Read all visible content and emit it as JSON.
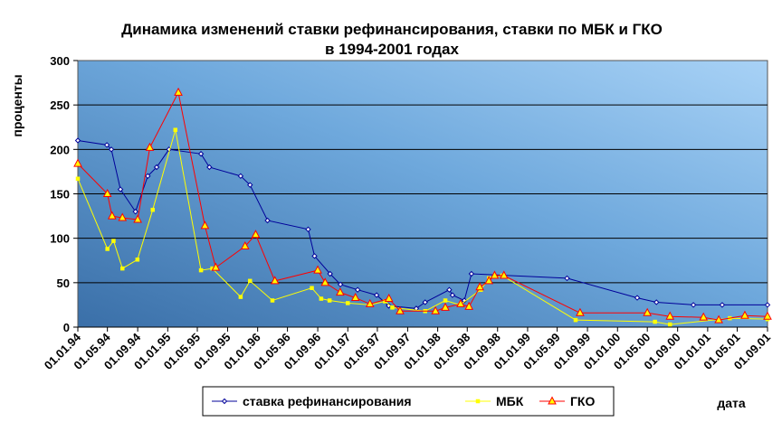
{
  "chart_data": {
    "type": "line",
    "title_line1": "Динамика изменений ставки рефинансирования, ставки по МБК и ГКО",
    "title_line2": "в 1994-2001 годах",
    "ylabel": "проценты",
    "xlabel": "дата",
    "ylim": [
      0,
      300
    ],
    "yticks": [
      0,
      50,
      100,
      150,
      200,
      250,
      300
    ],
    "xlim": [
      "1994-01-01",
      "2001-09-01"
    ],
    "xticks": [
      "01.01.94",
      "01.05.94",
      "01.09.94",
      "01.01.95",
      "01.05.95",
      "01.09.95",
      "01.01.96",
      "01.05.96",
      "01.09.96",
      "01.01.97",
      "01.05.97",
      "01.09.97",
      "01.01.98",
      "01.05.98",
      "01.09.98",
      "01.01.99",
      "01.05.99",
      "01.09.99",
      "01.01.00",
      "01.05.00",
      "01.09.00",
      "01.01.01",
      "01.05.01",
      "01.09.01"
    ],
    "xtick_dates": [
      "1994-01-01",
      "1994-05-01",
      "1994-09-01",
      "1995-01-01",
      "1995-05-01",
      "1995-09-01",
      "1996-01-01",
      "1996-05-01",
      "1996-09-01",
      "1997-01-01",
      "1997-05-01",
      "1997-09-01",
      "1998-01-01",
      "1998-05-01",
      "1998-09-01",
      "1999-01-01",
      "1999-05-01",
      "1999-09-01",
      "2000-01-01",
      "2000-05-01",
      "2000-09-01",
      "2001-01-01",
      "2001-05-01",
      "2001-09-01"
    ],
    "grid": true,
    "legend_position": "bottom",
    "series": [
      {
        "name": "ставка рефинансирования",
        "color": "#000099",
        "marker": "diamond",
        "points": [
          [
            "1994-01-01",
            210
          ],
          [
            "1994-04-29",
            205
          ],
          [
            "1994-05-17",
            200
          ],
          [
            "1994-06-23",
            155
          ],
          [
            "1994-08-23",
            130
          ],
          [
            "1994-10-12",
            170
          ],
          [
            "1994-11-17",
            180
          ],
          [
            "1995-01-06",
            200
          ],
          [
            "1995-05-16",
            195
          ],
          [
            "1995-06-19",
            180
          ],
          [
            "1995-10-24",
            170
          ],
          [
            "1995-12-01",
            160
          ],
          [
            "1996-02-10",
            120
          ],
          [
            "1996-07-24",
            110
          ],
          [
            "1996-08-19",
            80
          ],
          [
            "1996-10-21",
            60
          ],
          [
            "1996-12-02",
            48
          ],
          [
            "1997-02-10",
            42
          ],
          [
            "1997-04-28",
            36
          ],
          [
            "1997-06-16",
            24
          ],
          [
            "1997-10-06",
            21
          ],
          [
            "1997-11-11",
            28
          ],
          [
            "1998-02-17",
            42
          ],
          [
            "1998-03-02",
            36
          ],
          [
            "1998-04-19",
            30
          ],
          [
            "1998-05-18",
            60
          ],
          [
            "1999-06-10",
            55
          ],
          [
            "2000-03-21",
            33
          ],
          [
            "2000-06-07",
            28
          ],
          [
            "2000-11-04",
            25
          ],
          [
            "2001-03-01",
            25
          ],
          [
            "2001-09-01",
            25
          ]
        ]
      },
      {
        "name": "МБК",
        "color": "#ffff00",
        "marker": "square",
        "points": [
          [
            "1994-01-01",
            167
          ],
          [
            "1994-05-01",
            88
          ],
          [
            "1994-05-26",
            97
          ],
          [
            "1994-07-01",
            66
          ],
          [
            "1994-08-31",
            76
          ],
          [
            "1994-11-01",
            132
          ],
          [
            "1995-02-01",
            222
          ],
          [
            "1995-05-16",
            64
          ],
          [
            "1995-07-01",
            66
          ],
          [
            "1995-10-24",
            34
          ],
          [
            "1995-12-01",
            52
          ],
          [
            "1996-03-01",
            30
          ],
          [
            "1996-08-08",
            44
          ],
          [
            "1996-09-15",
            32
          ],
          [
            "1996-10-19",
            30
          ],
          [
            "1997-01-01",
            27
          ],
          [
            "1997-04-01",
            25
          ],
          [
            "1997-06-01",
            29
          ],
          [
            "1997-07-01",
            22
          ],
          [
            "1997-11-11",
            18
          ],
          [
            "1998-02-01",
            30
          ],
          [
            "1998-04-01",
            25
          ],
          [
            "1998-06-25",
            42
          ],
          [
            "1998-07-28",
            55
          ],
          [
            "1998-09-20",
            58
          ],
          [
            "1999-07-15",
            8
          ],
          [
            "2000-06-01",
            6
          ],
          [
            "2000-08-01",
            3
          ],
          [
            "2001-04-01",
            10
          ],
          [
            "2001-09-01",
            9
          ]
        ]
      },
      {
        "name": "ГКО",
        "color": "#ff0000",
        "marker": "triangle",
        "points": [
          [
            "1994-01-01",
            184
          ],
          [
            "1994-05-01",
            150
          ],
          [
            "1994-05-20",
            125
          ],
          [
            "1994-07-01",
            123
          ],
          [
            "1994-09-01",
            121
          ],
          [
            "1994-10-20",
            202
          ],
          [
            "1995-02-13",
            264
          ],
          [
            "1995-06-01",
            114
          ],
          [
            "1995-07-15",
            67
          ],
          [
            "1995-11-11",
            91
          ],
          [
            "1995-12-24",
            104
          ],
          [
            "1996-03-11",
            52
          ],
          [
            "1996-09-01",
            64
          ],
          [
            "1996-10-01",
            50
          ],
          [
            "1996-12-01",
            39
          ],
          [
            "1997-02-01",
            33
          ],
          [
            "1997-04-01",
            26
          ],
          [
            "1997-06-17",
            32
          ],
          [
            "1997-08-01",
            18
          ],
          [
            "1997-12-23",
            18
          ],
          [
            "1998-02-01",
            22
          ],
          [
            "1998-04-04",
            26
          ],
          [
            "1998-05-08",
            23
          ],
          [
            "1998-06-21",
            45
          ],
          [
            "1998-07-28",
            52
          ],
          [
            "1998-08-20",
            58
          ],
          [
            "1998-09-27",
            58
          ],
          [
            "1999-08-02",
            16
          ],
          [
            "2000-05-01",
            16
          ],
          [
            "2000-08-01",
            12
          ],
          [
            "2000-12-15",
            11
          ],
          [
            "2001-02-15",
            8
          ],
          [
            "2001-06-01",
            13
          ],
          [
            "2001-09-01",
            12
          ]
        ]
      }
    ]
  }
}
